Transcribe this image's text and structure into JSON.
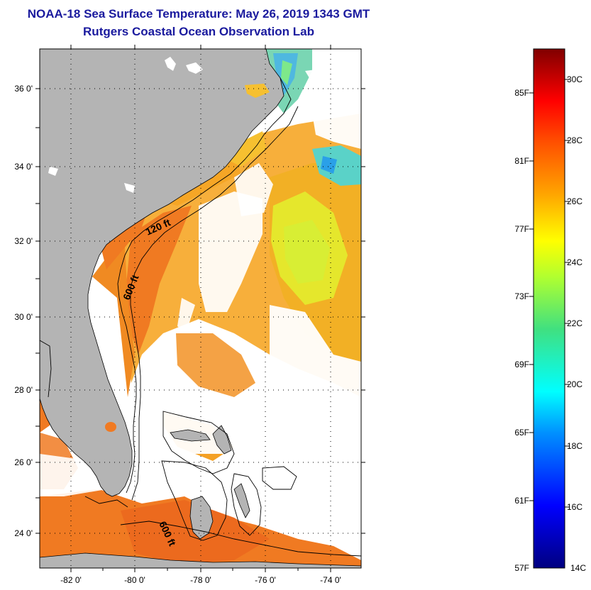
{
  "header": {
    "title": "NOAA-18 Sea Surface Temperature:  May 26, 2019 1343 GMT",
    "subtitle": "Rutgers Coastal Ocean Observation Lab"
  },
  "map": {
    "lat_labels": [
      "36 0'",
      "34 0'",
      "32 0'",
      "30 0'",
      "28 0'",
      "26 0'",
      "24 0'"
    ],
    "lon_labels": [
      "-82 0'",
      "-80 0'",
      "-78 0'",
      "-76 0'",
      "-74 0'"
    ],
    "contour_labels": [
      "120 ft",
      "600 ft",
      "600 ft"
    ],
    "colors": {
      "land": "#b4b4b4",
      "cloud": "#ffffff",
      "warm": "#f07a22",
      "mid": "#f6a626",
      "cool": "#e6ee2a"
    }
  },
  "colorbar": {
    "fahrenheit_labels": [
      "85F",
      "81F",
      "77F",
      "73F",
      "69F",
      "65F",
      "61F",
      "57F"
    ],
    "celsius_labels": [
      "30C",
      "28C",
      "26C",
      "24C",
      "22C",
      "20C",
      "18C",
      "16C",
      "14C"
    ],
    "range_celsius": [
      14,
      31
    ]
  }
}
